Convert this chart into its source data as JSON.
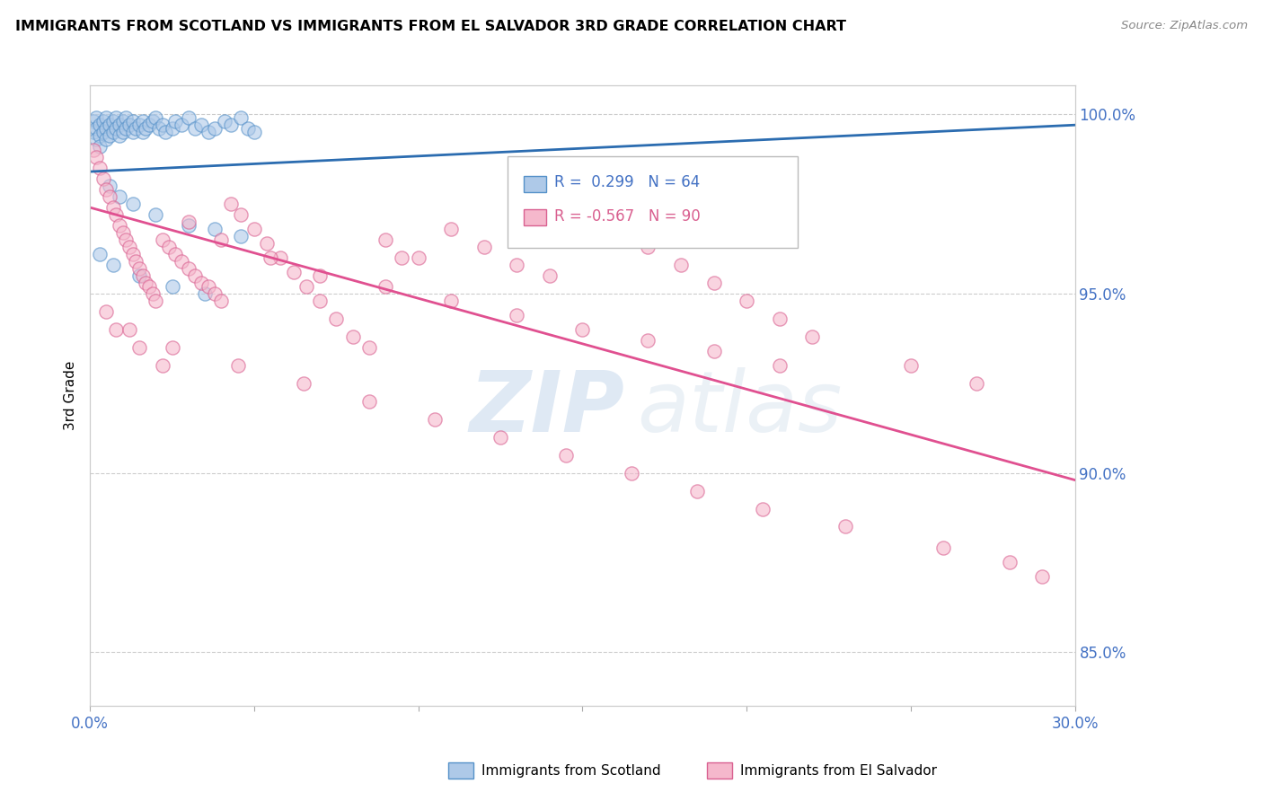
{
  "title": "IMMIGRANTS FROM SCOTLAND VS IMMIGRANTS FROM EL SALVADOR 3RD GRADE CORRELATION CHART",
  "source": "Source: ZipAtlas.com",
  "ylabel": "3rd Grade",
  "xlim": [
    0.0,
    0.3
  ],
  "ylim": [
    0.835,
    1.008
  ],
  "xtick_vals": [
    0.0,
    0.05,
    0.1,
    0.15,
    0.2,
    0.25,
    0.3
  ],
  "ytick_vals": [
    0.85,
    0.9,
    0.95,
    1.0
  ],
  "ytick_labels": [
    "85.0%",
    "90.0%",
    "95.0%",
    "100.0%"
  ],
  "scotland_color": "#aec9e8",
  "scotland_edge": "#5591c9",
  "scotland_line": "#2b6cb0",
  "elsalvador_color": "#f5b8cc",
  "elsalvador_edge": "#d96090",
  "elsalvador_line": "#e05090",
  "scotland_R": "0.299",
  "scotland_N": "64",
  "elsalvador_R": "-0.567",
  "elsalvador_N": "90",
  "legend_scotland": "Immigrants from Scotland",
  "legend_elsalvador": "Immigrants from El Salvador",
  "watermark_zip": "ZIP",
  "watermark_atlas": "atlas",
  "background_color": "#ffffff",
  "grid_color": "#cccccc",
  "tick_color": "#4472c4",
  "sc_trend_x0": 0.0,
  "sc_trend_x1": 0.3,
  "sc_trend_y0": 0.984,
  "sc_trend_y1": 0.997,
  "es_trend_x0": 0.0,
  "es_trend_x1": 0.3,
  "es_trend_y0": 0.974,
  "es_trend_y1": 0.898,
  "scotland_pts_x": [
    0.001,
    0.001,
    0.002,
    0.002,
    0.002,
    0.003,
    0.003,
    0.003,
    0.004,
    0.004,
    0.005,
    0.005,
    0.005,
    0.006,
    0.006,
    0.007,
    0.007,
    0.008,
    0.008,
    0.009,
    0.009,
    0.01,
    0.01,
    0.011,
    0.011,
    0.012,
    0.013,
    0.013,
    0.014,
    0.015,
    0.016,
    0.016,
    0.017,
    0.018,
    0.019,
    0.02,
    0.021,
    0.022,
    0.023,
    0.025,
    0.026,
    0.028,
    0.03,
    0.032,
    0.034,
    0.036,
    0.038,
    0.041,
    0.043,
    0.046,
    0.048,
    0.05,
    0.006,
    0.009,
    0.013,
    0.02,
    0.03,
    0.038,
    0.046,
    0.003,
    0.007,
    0.015,
    0.025,
    0.035
  ],
  "scotland_pts_y": [
    0.998,
    0.995,
    0.999,
    0.996,
    0.993,
    0.997,
    0.994,
    0.991,
    0.998,
    0.995,
    0.999,
    0.996,
    0.993,
    0.997,
    0.994,
    0.998,
    0.995,
    0.999,
    0.996,
    0.997,
    0.994,
    0.998,
    0.995,
    0.999,
    0.996,
    0.997,
    0.998,
    0.995,
    0.996,
    0.997,
    0.998,
    0.995,
    0.996,
    0.997,
    0.998,
    0.999,
    0.996,
    0.997,
    0.995,
    0.996,
    0.998,
    0.997,
    0.999,
    0.996,
    0.997,
    0.995,
    0.996,
    0.998,
    0.997,
    0.999,
    0.996,
    0.995,
    0.98,
    0.977,
    0.975,
    0.972,
    0.969,
    0.968,
    0.966,
    0.961,
    0.958,
    0.955,
    0.952,
    0.95
  ],
  "elsalvador_pts_x": [
    0.001,
    0.002,
    0.003,
    0.004,
    0.005,
    0.006,
    0.007,
    0.008,
    0.009,
    0.01,
    0.011,
    0.012,
    0.013,
    0.014,
    0.015,
    0.016,
    0.017,
    0.018,
    0.019,
    0.02,
    0.022,
    0.024,
    0.026,
    0.028,
    0.03,
    0.032,
    0.034,
    0.036,
    0.038,
    0.04,
    0.043,
    0.046,
    0.05,
    0.054,
    0.058,
    0.062,
    0.066,
    0.07,
    0.075,
    0.08,
    0.085,
    0.09,
    0.095,
    0.1,
    0.11,
    0.12,
    0.13,
    0.14,
    0.15,
    0.16,
    0.17,
    0.18,
    0.19,
    0.2,
    0.21,
    0.22,
    0.25,
    0.27,
    0.008,
    0.015,
    0.022,
    0.03,
    0.04,
    0.055,
    0.07,
    0.09,
    0.11,
    0.13,
    0.15,
    0.17,
    0.19,
    0.21,
    0.005,
    0.012,
    0.025,
    0.045,
    0.065,
    0.085,
    0.105,
    0.125,
    0.145,
    0.165,
    0.185,
    0.205,
    0.23,
    0.26,
    0.28,
    0.29
  ],
  "elsalvador_pts_y": [
    0.99,
    0.988,
    0.985,
    0.982,
    0.979,
    0.977,
    0.974,
    0.972,
    0.969,
    0.967,
    0.965,
    0.963,
    0.961,
    0.959,
    0.957,
    0.955,
    0.953,
    0.952,
    0.95,
    0.948,
    0.965,
    0.963,
    0.961,
    0.959,
    0.957,
    0.955,
    0.953,
    0.952,
    0.95,
    0.948,
    0.975,
    0.972,
    0.968,
    0.964,
    0.96,
    0.956,
    0.952,
    0.948,
    0.943,
    0.938,
    0.935,
    0.965,
    0.96,
    0.96,
    0.968,
    0.963,
    0.958,
    0.955,
    0.972,
    0.967,
    0.963,
    0.958,
    0.953,
    0.948,
    0.943,
    0.938,
    0.93,
    0.925,
    0.94,
    0.935,
    0.93,
    0.97,
    0.965,
    0.96,
    0.955,
    0.952,
    0.948,
    0.944,
    0.94,
    0.937,
    0.934,
    0.93,
    0.945,
    0.94,
    0.935,
    0.93,
    0.925,
    0.92,
    0.915,
    0.91,
    0.905,
    0.9,
    0.895,
    0.89,
    0.885,
    0.879,
    0.875,
    0.871
  ]
}
